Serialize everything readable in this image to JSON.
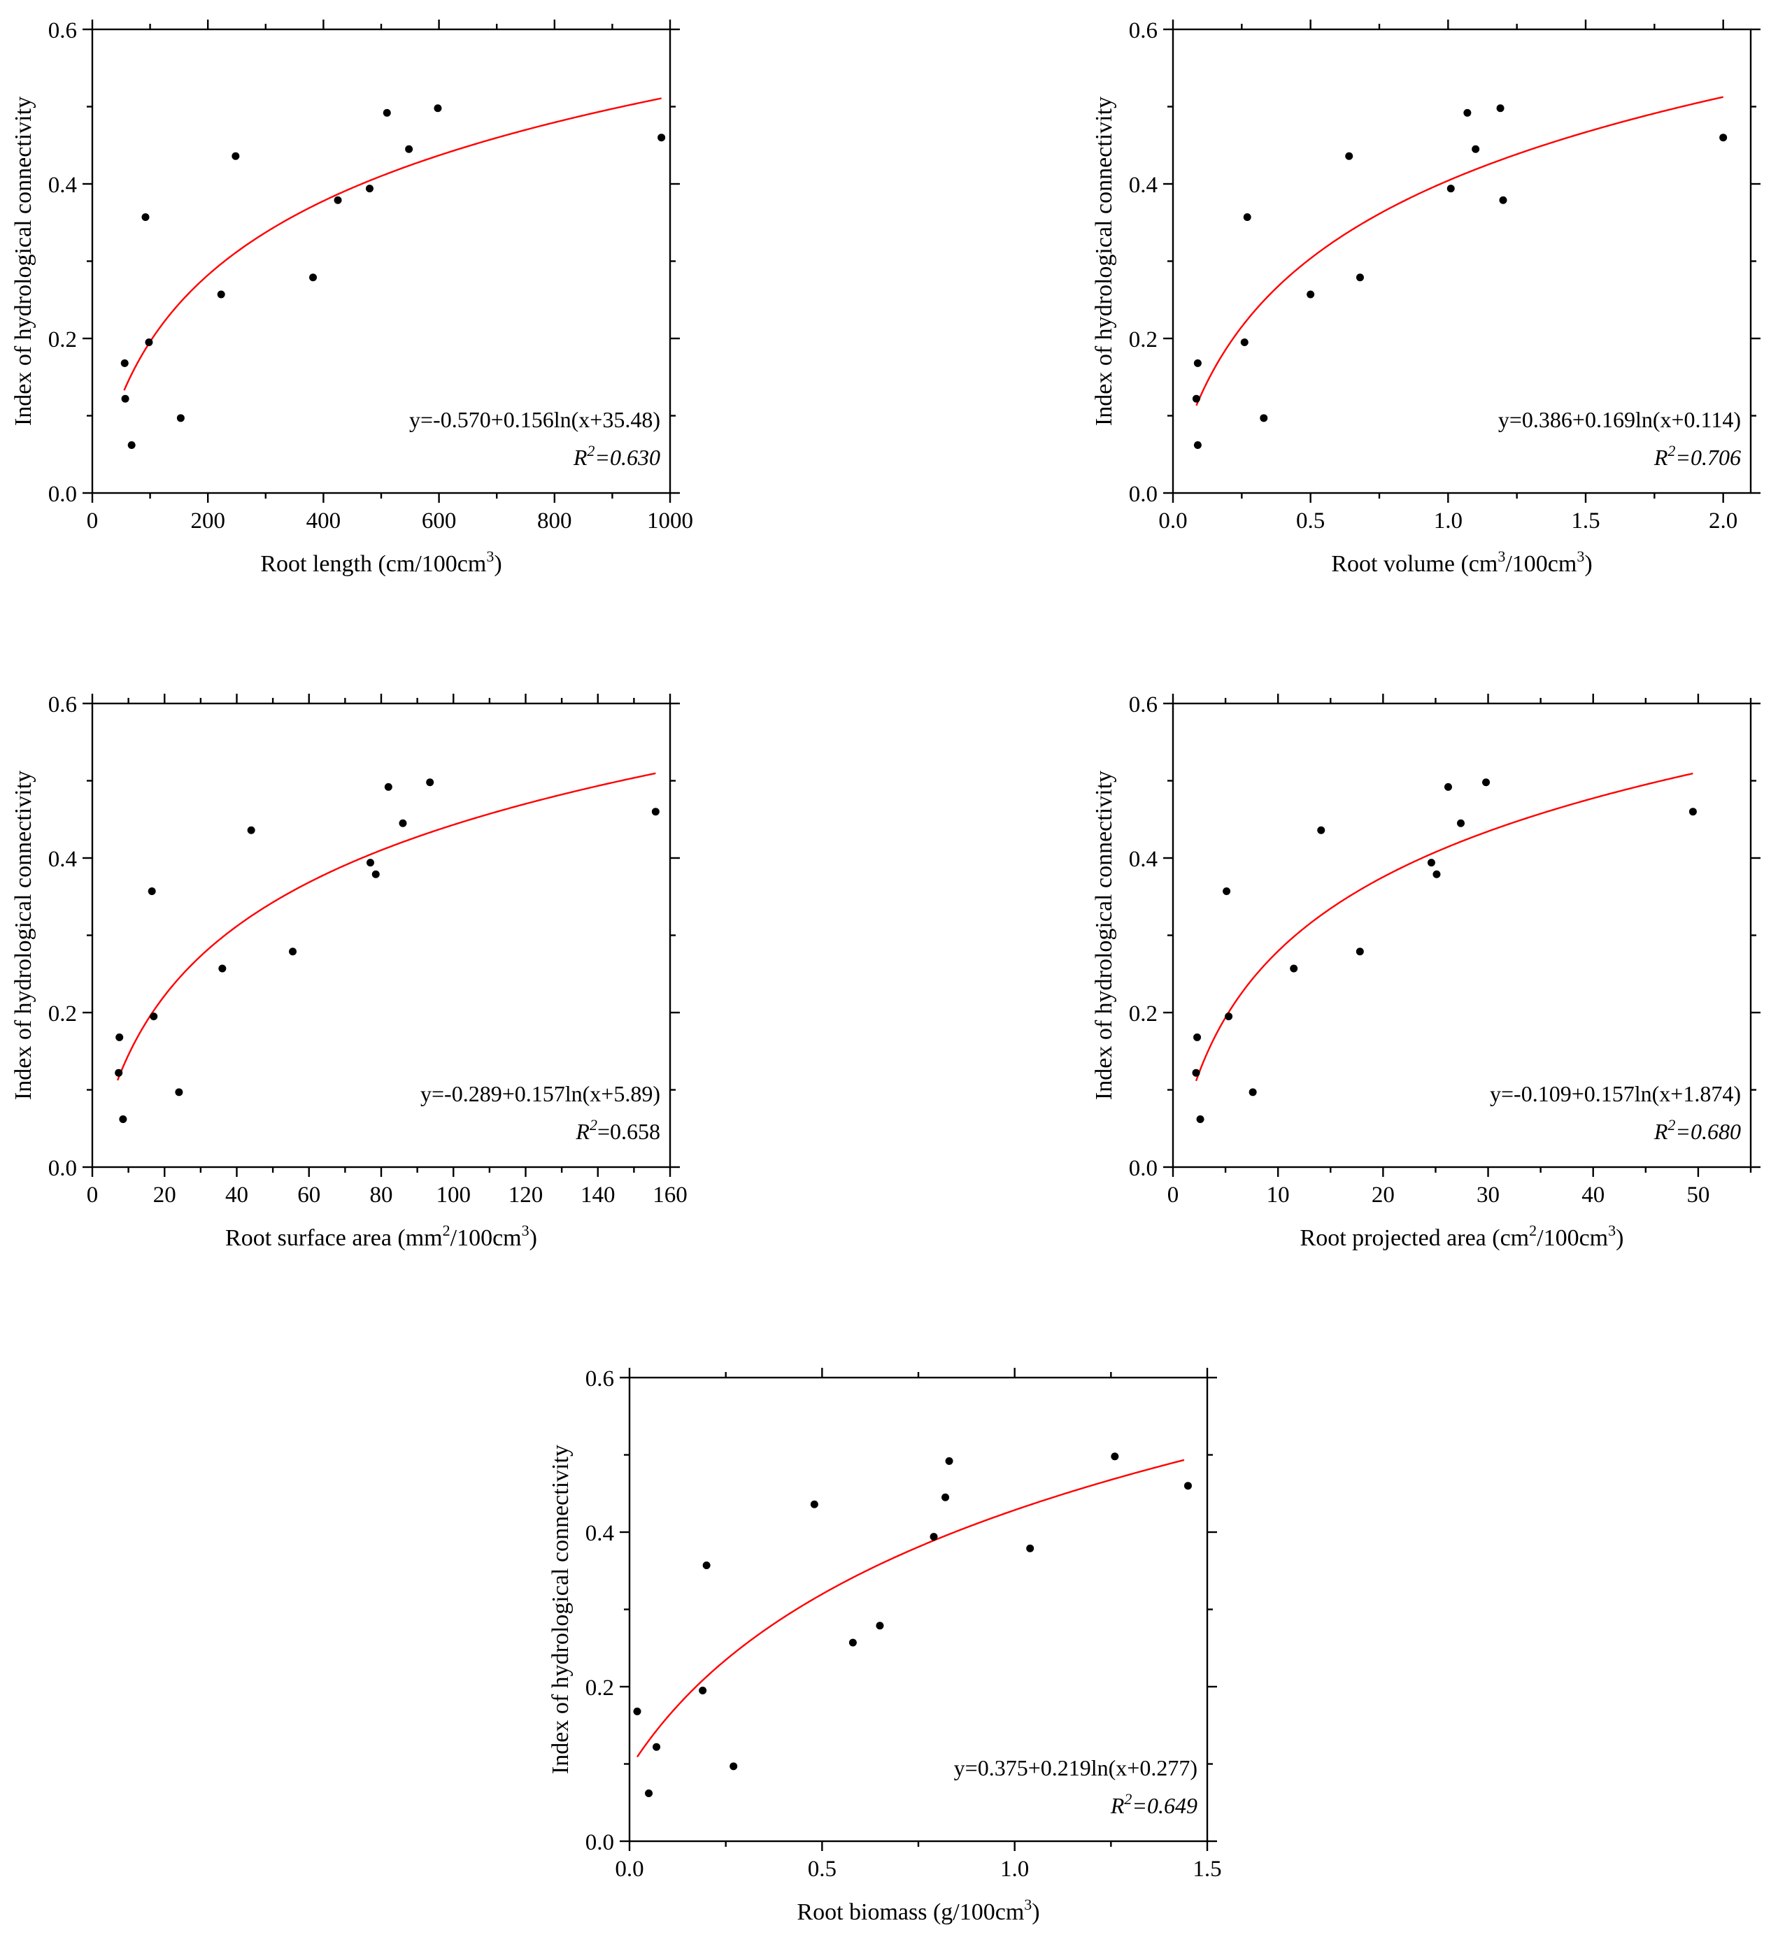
{
  "colors": {
    "fit_line": "#ff0000",
    "points": "#000000",
    "axes": "#000000",
    "background": "#ffffff"
  },
  "chart_data": [
    {
      "id": "length",
      "type": "scatter",
      "xlabel": "Root length (cm/100cm",
      "xlabel_sup": "3",
      "xlabel_end": ")",
      "ylabel": "Index of hydrological connectivity",
      "xlim": [
        0,
        1000
      ],
      "ylim": [
        0,
        0.6
      ],
      "xticks": [
        0,
        200,
        400,
        600,
        800,
        1000
      ],
      "xtick_labels": [
        "0",
        "200",
        "400",
        "600",
        "800",
        "1000"
      ],
      "yticks": [
        0,
        0.2,
        0.4,
        0.6
      ],
      "ytick_labels": [
        "0.0",
        "0.2",
        "0.4",
        "0.6"
      ],
      "equation": "y=-0.570+0.156ln(x+35.48)",
      "r2_prefix": "R",
      "r2_sup": "2",
      "r2_value": "=0.630",
      "fit": {
        "a": -0.57,
        "b": 0.156,
        "c": 35.48,
        "x_from": 55,
        "x_to": 985
      },
      "x": [
        56,
        57,
        68,
        92,
        98,
        153,
        223,
        248,
        382,
        425,
        480,
        510,
        548,
        598,
        985
      ],
      "y": [
        0.168,
        0.122,
        0.062,
        0.357,
        0.195,
        0.097,
        0.257,
        0.436,
        0.279,
        0.379,
        0.394,
        0.492,
        0.445,
        0.498,
        0.46
      ]
    },
    {
      "id": "volume",
      "type": "scatter",
      "xlabel": "Root volume (cm",
      "xlabel_sup": "3",
      "xlabel_mid": "/100cm",
      "xlabel_sup2": "3",
      "xlabel_end": ")",
      "ylabel": "Index of hydrological connectivity",
      "xlim": [
        0,
        2.1
      ],
      "ylim": [
        0,
        0.6
      ],
      "xticks": [
        0,
        0.5,
        1,
        1.5,
        2
      ],
      "xtick_labels": [
        "0.0",
        "0.5",
        "1.0",
        "1.5",
        "2.0"
      ],
      "yticks": [
        0,
        0.2,
        0.4,
        0.6
      ],
      "ytick_labels": [
        "0.0",
        "0.2",
        "0.4",
        "0.6"
      ],
      "equation": "y=0.386+0.169ln(x+0.114)",
      "r2_prefix": "R",
      "r2_sup": "2",
      "r2_value": "=0.706",
      "fit": {
        "a": 0.386,
        "b": 0.169,
        "c": 0.114,
        "x_from": 0.085,
        "x_to": 2.0
      },
      "x": [
        0.09,
        0.085,
        0.09,
        0.26,
        0.27,
        0.33,
        0.5,
        0.64,
        0.68,
        1.01,
        1.07,
        1.1,
        1.19,
        1.2,
        2.0
      ],
      "y": [
        0.168,
        0.122,
        0.062,
        0.195,
        0.357,
        0.097,
        0.257,
        0.436,
        0.279,
        0.394,
        0.492,
        0.445,
        0.498,
        0.379,
        0.46
      ]
    },
    {
      "id": "surface",
      "type": "scatter",
      "xlabel": "Root surface area (mm",
      "xlabel_sup": "2",
      "xlabel_mid": "/100cm",
      "xlabel_sup2": "3",
      "xlabel_end": ")",
      "ylabel": "Index of hydrological connectivity",
      "xlim": [
        0,
        160
      ],
      "ylim": [
        0,
        0.6
      ],
      "xticks": [
        0,
        20,
        40,
        60,
        80,
        100,
        120,
        140,
        160
      ],
      "xtick_labels": [
        "0",
        "20",
        "40",
        "60",
        "80",
        "100",
        "120",
        "140",
        "160"
      ],
      "yticks": [
        0,
        0.2,
        0.4,
        0.6
      ],
      "ytick_labels": [
        "0.0",
        "0.2",
        "0.4",
        "0.6"
      ],
      "equation": "y=-0.289+0.157ln(x+5.89)",
      "r2_prefix": "R",
      "r2_sup": "2",
      "r2_value": "=0.658",
      "r2_value_italic": false,
      "fit": {
        "a": -0.289,
        "b": 0.157,
        "c": 5.89,
        "x_from": 7,
        "x_to": 156
      },
      "x": [
        7.5,
        7.3,
        8.5,
        17,
        16.5,
        24,
        36,
        44,
        55.5,
        77,
        78.5,
        82,
        86,
        93.5,
        156
      ],
      "y": [
        0.168,
        0.122,
        0.062,
        0.195,
        0.357,
        0.097,
        0.257,
        0.436,
        0.279,
        0.394,
        0.379,
        0.492,
        0.445,
        0.498,
        0.46
      ]
    },
    {
      "id": "projected",
      "type": "scatter",
      "xlabel": "Root projected area (cm",
      "xlabel_sup": "2",
      "xlabel_mid": "/100cm",
      "xlabel_sup2": "3",
      "xlabel_end": ")",
      "ylabel": "Index of hydrological connectivity",
      "xlim": [
        0,
        55
      ],
      "ylim": [
        0,
        0.6
      ],
      "xticks": [
        0,
        10,
        20,
        30,
        40,
        50
      ],
      "xtick_labels": [
        "0",
        "10",
        "20",
        "30",
        "40",
        "50"
      ],
      "yticks": [
        0,
        0.2,
        0.4,
        0.6
      ],
      "ytick_labels": [
        "0.0",
        "0.2",
        "0.4",
        "0.6"
      ],
      "equation": "y=-0.109+0.157ln(x+1.874)",
      "r2_prefix": "R",
      "r2_sup": "2",
      "r2_value": "=0.680",
      "fit": {
        "a": -0.109,
        "b": 0.157,
        "c": 1.874,
        "x_from": 2.2,
        "x_to": 49.5
      },
      "x": [
        2.3,
        2.2,
        2.6,
        5.3,
        5.1,
        7.6,
        11.5,
        14.1,
        17.8,
        24.6,
        25.1,
        26.2,
        27.4,
        29.8,
        49.5
      ],
      "y": [
        0.168,
        0.122,
        0.062,
        0.195,
        0.357,
        0.097,
        0.257,
        0.436,
        0.279,
        0.394,
        0.379,
        0.492,
        0.445,
        0.498,
        0.46
      ]
    },
    {
      "id": "biomass",
      "type": "scatter",
      "xlabel": "Root biomass (g/100cm",
      "xlabel_sup": "3",
      "xlabel_end": ")",
      "ylabel": "Index of hydrological connectivity",
      "xlim": [
        0,
        1.5
      ],
      "ylim": [
        0,
        0.6
      ],
      "xticks": [
        0,
        0.5,
        1,
        1.5
      ],
      "xtick_labels": [
        "0.0",
        "0.5",
        "1.0",
        "1.5"
      ],
      "yticks": [
        0,
        0.2,
        0.4,
        0.6
      ],
      "ytick_labels": [
        "0.0",
        "0.2",
        "0.4",
        "0.6"
      ],
      "equation": "y=0.375+0.219ln(x+0.277)",
      "r2_prefix": "R",
      "r2_sup": "2",
      "r2_value": "=0.649",
      "fit": {
        "a": 0.375,
        "b": 0.219,
        "c": 0.277,
        "x_from": 0.02,
        "x_to": 1.44
      },
      "x": [
        0.02,
        0.07,
        0.05,
        0.19,
        0.2,
        0.27,
        0.48,
        0.58,
        0.65,
        0.79,
        0.83,
        0.82,
        1.04,
        1.26,
        1.45
      ],
      "y": [
        0.168,
        0.122,
        0.062,
        0.195,
        0.357,
        0.097,
        0.436,
        0.257,
        0.279,
        0.394,
        0.492,
        0.445,
        0.379,
        0.498,
        0.46
      ]
    }
  ]
}
